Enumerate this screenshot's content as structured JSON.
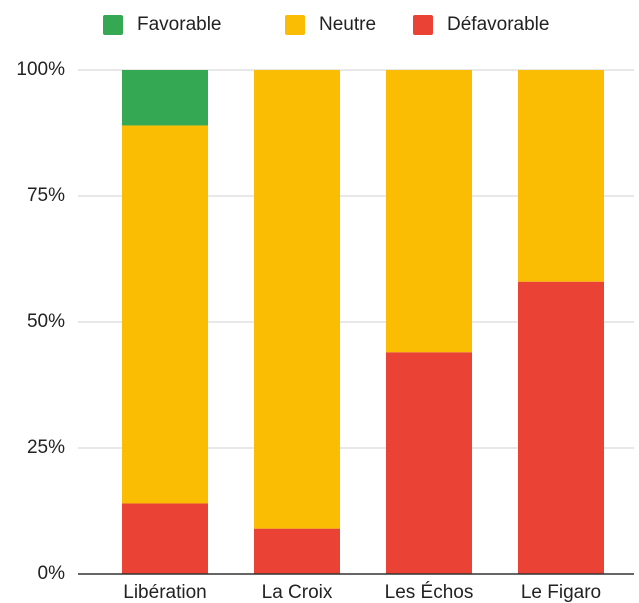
{
  "chart_data": {
    "type": "bar",
    "stacked": true,
    "categories": [
      "Libération",
      "La Croix",
      "Les Échos",
      "Le Figaro"
    ],
    "series": [
      {
        "name": "Favorable",
        "color": "#34a853",
        "values": [
          11,
          0,
          0,
          0
        ]
      },
      {
        "name": "Neutre",
        "color": "#fbbc04",
        "values": [
          75,
          91,
          56,
          42
        ]
      },
      {
        "name": "Défavorable",
        "color": "#ea4335",
        "values": [
          14,
          9,
          44,
          58
        ]
      }
    ],
    "ylim": [
      0,
      100
    ],
    "yticks": [
      {
        "value": 0,
        "label": "0%"
      },
      {
        "value": 25,
        "label": "25%"
      },
      {
        "value": 50,
        "label": "50%"
      },
      {
        "value": 75,
        "label": "75%"
      },
      {
        "value": 100,
        "label": "100%"
      }
    ],
    "grid": true,
    "legend": "top"
  }
}
